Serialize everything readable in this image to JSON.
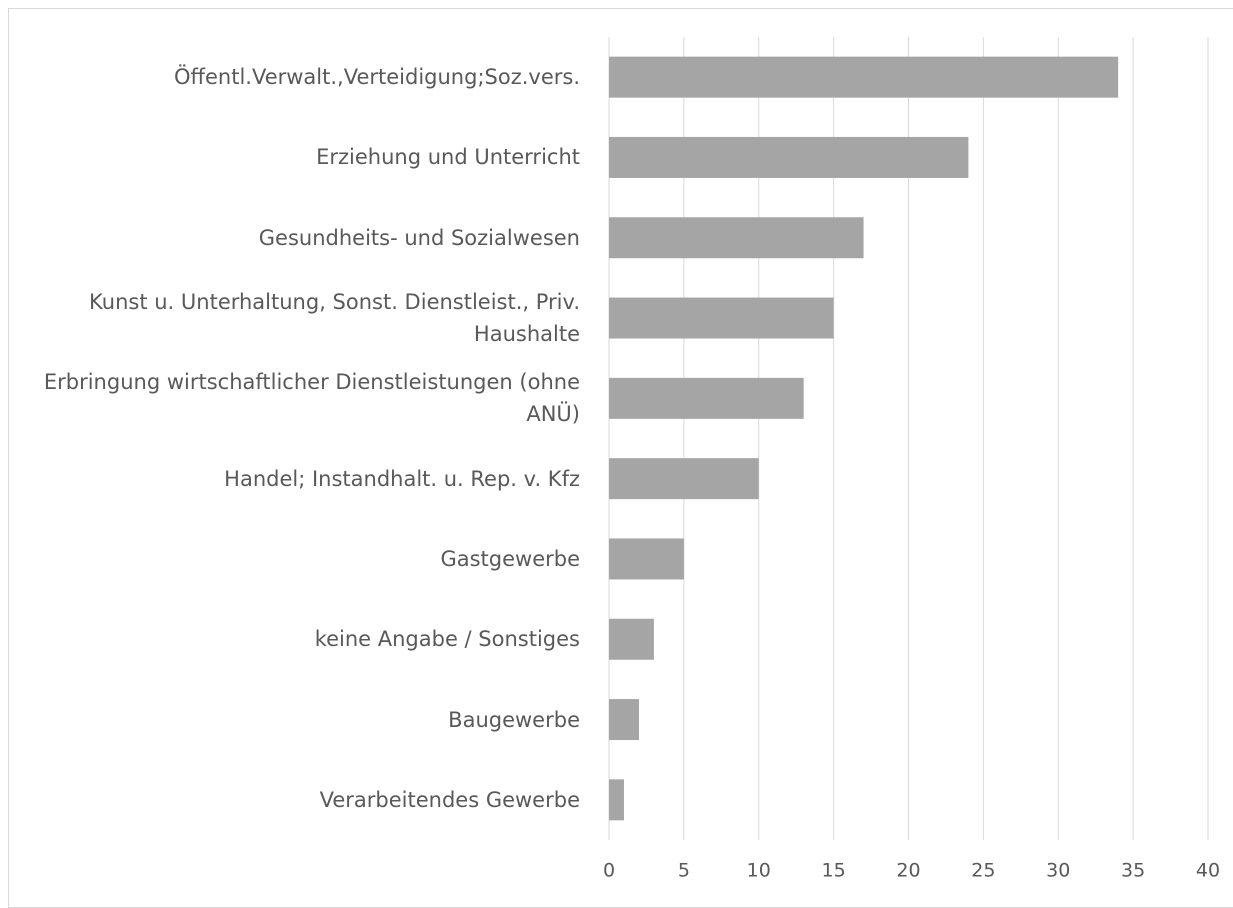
{
  "chart_data": {
    "type": "bar",
    "orientation": "horizontal",
    "categories": [
      "Öffentl.Verwalt.,Verteidigung;Soz.vers.",
      "Erziehung und Unterricht",
      "Gesundheits- und Sozialwesen",
      "Kunst u. Unterhaltung, Sonst. Dienstleist., Priv. Haushalte",
      "Erbringung wirtschaftlicher Dienstleistungen (ohne ANÜ)",
      "Handel; Instandhalt. u. Rep. v. Kfz",
      "Gastgewerbe",
      "keine Angabe / Sonstiges",
      "Baugewerbe",
      "Verarbeitendes Gewerbe"
    ],
    "values": [
      34,
      24,
      17,
      15,
      13,
      10,
      5,
      3,
      2,
      1
    ],
    "color": "#a5a5a5",
    "xlim": [
      0,
      40
    ],
    "xticks": [
      0,
      5,
      10,
      15,
      20,
      25,
      30,
      35,
      40
    ],
    "grid": true
  }
}
